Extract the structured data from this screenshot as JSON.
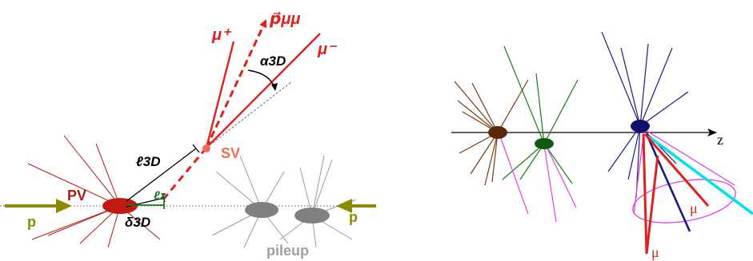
{
  "left": {
    "labels": {
      "mu_plus": "μ⁺",
      "mu_minus": "μ⁻",
      "p_mumu": "p⃗μμ",
      "alpha": "α3D",
      "l3d": "ℓ3D",
      "sv": "SV",
      "pv": "PV",
      "lz": "ℓz",
      "delta": "δ3D",
      "p_left": "p",
      "p_right": "p",
      "pileup": "pileup"
    },
    "colors": {
      "red": "#e0201c",
      "darkred": "#b01a10",
      "sv": "#f36a5a",
      "gray": "#8a8a8a",
      "olive": "#8c8a00",
      "green": "#1a7a1a"
    }
  },
  "right": {
    "labels": {
      "z": "z",
      "mu_upper": "μ",
      "mu_lower": "μ"
    },
    "colors": {
      "brown": "#7a3a10",
      "green": "#1a7a1a",
      "navy": "#1a1a80",
      "magenta": "#e040e0",
      "cyan": "#00e0f0",
      "red": "#e0201c"
    }
  }
}
